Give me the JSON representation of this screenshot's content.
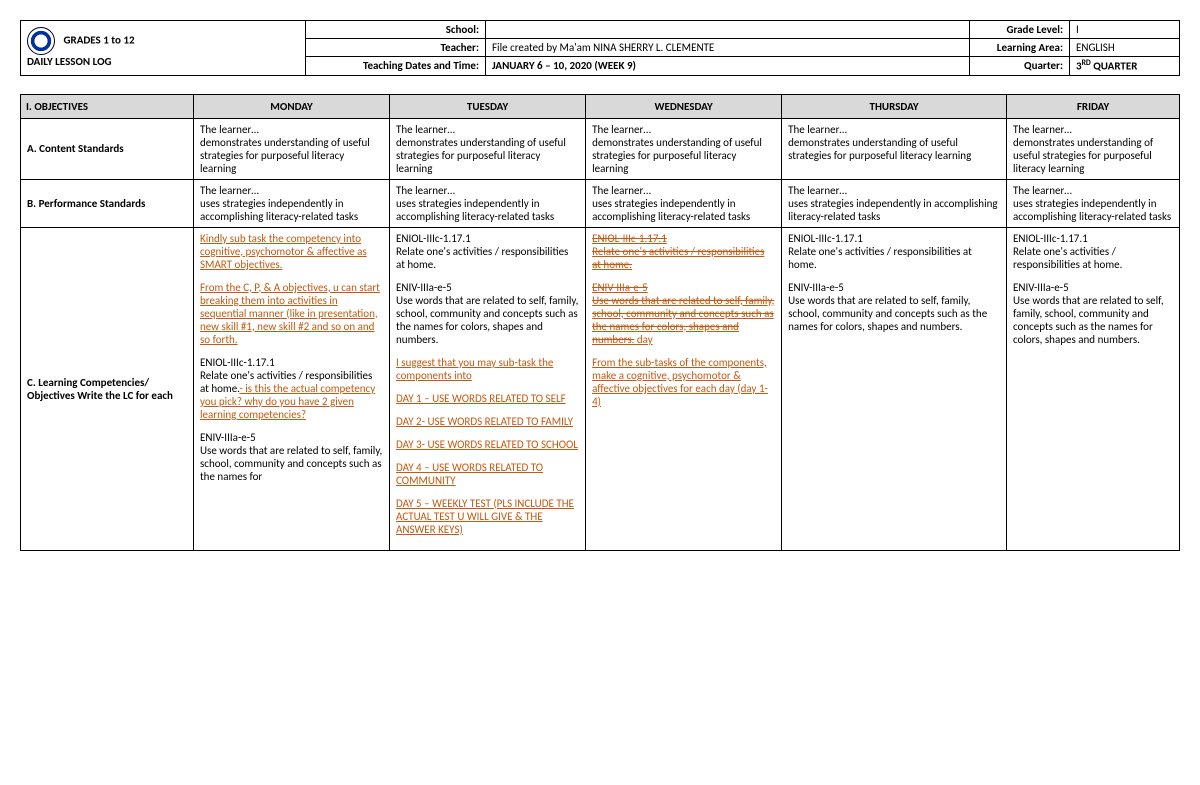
{
  "header": {
    "title_line1": "GRADES 1 to 12",
    "title_line2": "DAILY LESSON LOG",
    "labels": {
      "school": "School:",
      "teacher": "Teacher:",
      "dates": "Teaching Dates and Time:",
      "grade": "Grade Level:",
      "area": "Learning Area:",
      "quarter": "Quarter:"
    },
    "values": {
      "school": "",
      "teacher": "File created by Ma'am NINA SHERRY L. CLEMENTE",
      "dates": "JANUARY 6 – 10, 2020 (WEEK 9)",
      "grade": "I",
      "area": "ENGLISH",
      "quarter_prefix": "3",
      "quarter_sup": "RD",
      "quarter_suffix": " QUARTER"
    }
  },
  "table_headers": [
    "I. OBJECTIVES",
    "MONDAY",
    "TUESDAY",
    "WEDNESDAY",
    "THURSDAY",
    "FRIDAY"
  ],
  "rows": {
    "a": {
      "label": "A. Content Standards",
      "mon": "The learner…\ndemonstrates understanding of useful strategies for purposeful literacy learning",
      "tue": "The learner…\ndemonstrates understanding of useful strategies for purposeful literacy learning",
      "wed": "The learner…\ndemonstrates understanding of useful strategies for purposeful literacy learning",
      "thu": "The learner…\ndemonstrates understanding of useful strategies for purposeful literacy learning",
      "fri": "The learner…\ndemonstrates understanding of useful strategies for purposeful literacy learning"
    },
    "b": {
      "label": "B. Performance Standards",
      "mon": "The learner…\nuses strategies independently in accomplishing literacy-related tasks",
      "tue": "The learner…\nuses strategies independently in accomplishing literacy-related tasks",
      "wed": "The learner…\nuses strategies independently in accomplishing literacy-related tasks",
      "thu": "The learner…\nuses strategies independently in accomplishing literacy-related tasks",
      "fri": "The learner…\nuses strategies independently in accomplishing literacy-related tasks"
    },
    "c": {
      "label": "C. Learning Competencies/ Objectives Write the LC for each",
      "mon": {
        "c1": "Kindly sub task the competency into cognitive, psychomotor & affective as SMART objectives.",
        "c2": "From the C, P, & A objectives, u can start breaking them into activities in sequential manner (like in presentation, new skill #1, new skill #2 and so on and so forth.",
        "code1_prefix": " ",
        "code1": "ENIOL-IIIc-1.17.1",
        "t1": "Relate one's activities / responsibilities at home.",
        "c3": "- is this the actual competency you pick? why do you have 2 given learning competencies?",
        "code2": "ENIV-IIIa-e-5",
        "t2": "Use words that are related to self, family, school, community and concepts such as the names for"
      },
      "tue": {
        "code1": "ENIOL-IIIc-1.17.1",
        "t1": "Relate one's activities / responsibilities at home.",
        "code2": "ENIV-IIIa-e-5",
        "t2": "Use words that are related to self, family, school, community and concepts such as the names for colors, shapes and numbers.",
        "c_intro": "I suggest that you may sub-task the components into",
        "d1": "DAY 1 – USE WORDS RELATED TO SELF",
        "d2": "DAY 2- USE WORDS RELATED TO FAMILY",
        "d3": "DAY 3- USE WORDS RELATED TO SCHOOL",
        "d4": "DAY 4 – USE WORDS  RELATED TO COMMUNITY",
        "d5": "DAY 5 – WEEKLY TEST (PLS INCLUDE THE ACTUAL TEST U WILL GIVE & THE ANSWER KEYS)"
      },
      "wed": {
        "s_code1": "ENIOL-IIIc-1.17.1",
        "s_t1": "Relate one's activities / responsibilities at home.",
        "s_code2": "ENIV-IIIa-e-5",
        "s_t2": "Use words that are related to self, family, school, community and concepts such as the names for colors, shapes and numbers.",
        "wed_tail": " day",
        "c1": "From the sub-tasks of the components, make a cognitive, psychomotor & affective objectives for each day (day 1-4)"
      },
      "thu": {
        "code1": "ENIOL-IIIc-1.17.1",
        "t1": "Relate one's activities / responsibilities at home.",
        "code2": "ENIV-IIIa-e-5",
        "t2": "Use words that are related to self, family, school, community and concepts such as the names for colors, shapes and numbers."
      },
      "fri": {
        "code1": "ENIOL-IIIc-1.17.1",
        "t1": "Relate one's activities / responsibilities at home.",
        "code2": "ENIV-IIIa-e-5",
        "t2": "Use words that are related to self, family, school, community and concepts such as the names for colors, shapes and numbers."
      }
    }
  },
  "colors": {
    "header_fill": "#d9d9d9",
    "comment": "#c45911",
    "border": "#000000",
    "background": "#ffffff"
  }
}
